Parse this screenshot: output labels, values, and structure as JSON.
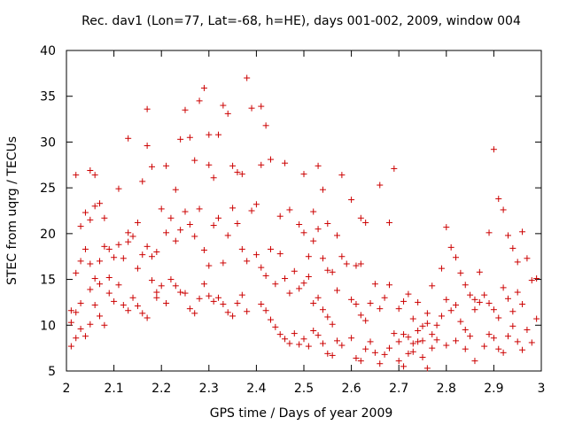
{
  "chart_data": {
    "type": "scatter",
    "title": "Rec. dav1 (Lon=77, Lat=-68, h=HE), days 001-002, 2009, window 004",
    "xlabel": "GPS time / Days of year 2009",
    "ylabel": "STEC from uqrg / TECUs",
    "xlim": [
      2,
      3
    ],
    "ylim": [
      5,
      40
    ],
    "xticks": [
      2,
      2.1,
      2.2,
      2.3,
      2.4,
      2.5,
      2.6,
      2.7,
      2.8,
      2.9,
      3
    ],
    "xtick_labels": [
      "2",
      "2.1",
      "2.2",
      "2.3",
      "2.4",
      "2.5",
      "2.6",
      "2.7",
      "2.8",
      "2.9",
      "3"
    ],
    "yticks": [
      5,
      10,
      15,
      20,
      25,
      30,
      35,
      40
    ],
    "ytick_labels": [
      "5",
      "10",
      "15",
      "20",
      "25",
      "30",
      "35",
      "40"
    ],
    "marker": "+",
    "grid": false,
    "legend": "none",
    "series": [
      {
        "name": "STEC",
        "color": "#cc0000",
        "points": [
          [
            2.02,
            26.4
          ],
          [
            2.05,
            26.9
          ],
          [
            2.06,
            26.4
          ],
          [
            2.03,
            20.8
          ],
          [
            2.04,
            22.3
          ],
          [
            2.05,
            21.5
          ],
          [
            2.06,
            23.0
          ],
          [
            2.07,
            23.3
          ],
          [
            2.08,
            21.7
          ],
          [
            2.02,
            15.7
          ],
          [
            2.03,
            17.0
          ],
          [
            2.04,
            18.3
          ],
          [
            2.05,
            16.7
          ],
          [
            2.06,
            15.1
          ],
          [
            2.07,
            17.0
          ],
          [
            2.08,
            18.6
          ],
          [
            2.09,
            18.3
          ],
          [
            2.1,
            17.4
          ],
          [
            2.11,
            24.9
          ],
          [
            2.13,
            30.4
          ],
          [
            2.13,
            20.1
          ],
          [
            2.14,
            19.7
          ],
          [
            2.15,
            21.2
          ],
          [
            2.16,
            25.7
          ],
          [
            2.17,
            29.6
          ],
          [
            2.17,
            33.6
          ],
          [
            2.18,
            27.3
          ],
          [
            2.11,
            18.8
          ],
          [
            2.12,
            17.3
          ],
          [
            2.13,
            19.1
          ],
          [
            2.15,
            16.2
          ],
          [
            2.16,
            17.7
          ],
          [
            2.17,
            18.6
          ],
          [
            2.18,
            17.5
          ],
          [
            2.19,
            18.0
          ],
          [
            2.19,
            13.0
          ],
          [
            2.2,
            22.7
          ],
          [
            2.21,
            27.4
          ],
          [
            2.22,
            21.7
          ],
          [
            2.23,
            24.8
          ],
          [
            2.24,
            30.3
          ],
          [
            2.25,
            33.5
          ],
          [
            2.26,
            30.5
          ],
          [
            2.27,
            28.0
          ],
          [
            2.28,
            34.5
          ],
          [
            2.29,
            35.9
          ],
          [
            2.3,
            30.8
          ],
          [
            2.3,
            27.5
          ],
          [
            2.31,
            26.1
          ],
          [
            2.32,
            30.8
          ],
          [
            2.33,
            34.0
          ],
          [
            2.34,
            33.1
          ],
          [
            2.35,
            27.4
          ],
          [
            2.36,
            26.7
          ],
          [
            2.37,
            26.5
          ],
          [
            2.38,
            37.0
          ],
          [
            2.39,
            33.7
          ],
          [
            2.41,
            33.9
          ],
          [
            2.42,
            31.8
          ],
          [
            2.41,
            27.5
          ],
          [
            2.43,
            28.1
          ],
          [
            2.46,
            27.7
          ],
          [
            2.39,
            22.5
          ],
          [
            2.21,
            20.1
          ],
          [
            2.23,
            19.2
          ],
          [
            2.24,
            20.4
          ],
          [
            2.25,
            22.4
          ],
          [
            2.26,
            21.0
          ],
          [
            2.27,
            19.7
          ],
          [
            2.28,
            22.7
          ],
          [
            2.29,
            18.2
          ],
          [
            2.3,
            16.5
          ],
          [
            2.31,
            20.9
          ],
          [
            2.32,
            21.7
          ],
          [
            2.33,
            16.8
          ],
          [
            2.34,
            19.8
          ],
          [
            2.35,
            22.8
          ],
          [
            2.36,
            21.1
          ],
          [
            2.37,
            18.3
          ],
          [
            2.38,
            17.0
          ],
          [
            2.4,
            23.2
          ],
          [
            2.01,
            11.6
          ],
          [
            2.02,
            11.4
          ],
          [
            2.03,
            9.6
          ],
          [
            2.04,
            8.8
          ],
          [
            2.05,
            10.1
          ],
          [
            2.06,
            12.2
          ],
          [
            2.07,
            11.0
          ],
          [
            2.08,
            10.0
          ],
          [
            2.09,
            13.5
          ],
          [
            2.01,
            10.3
          ],
          [
            2.02,
            8.6
          ],
          [
            2.01,
            7.7
          ],
          [
            2.03,
            12.4
          ],
          [
            2.05,
            13.9
          ],
          [
            2.07,
            14.5
          ],
          [
            2.09,
            15.2
          ],
          [
            2.1,
            12.6
          ],
          [
            2.11,
            14.4
          ],
          [
            2.12,
            12.2
          ],
          [
            2.13,
            11.6
          ],
          [
            2.14,
            13.0
          ],
          [
            2.15,
            12.1
          ],
          [
            2.16,
            11.3
          ],
          [
            2.17,
            10.8
          ],
          [
            2.18,
            14.9
          ],
          [
            2.19,
            13.6
          ],
          [
            2.2,
            14.3
          ],
          [
            2.21,
            12.4
          ],
          [
            2.22,
            15.0
          ],
          [
            2.23,
            14.3
          ],
          [
            2.24,
            13.6
          ],
          [
            2.25,
            13.5
          ],
          [
            2.26,
            11.8
          ],
          [
            2.27,
            11.3
          ],
          [
            2.28,
            12.9
          ],
          [
            2.29,
            14.5
          ],
          [
            2.3,
            13.2
          ],
          [
            2.31,
            12.6
          ],
          [
            2.32,
            13.0
          ],
          [
            2.33,
            12.3
          ],
          [
            2.34,
            11.4
          ],
          [
            2.35,
            11.0
          ],
          [
            2.36,
            12.4
          ],
          [
            2.37,
            13.3
          ],
          [
            2.38,
            11.5
          ],
          [
            2.41,
            12.3
          ],
          [
            2.42,
            11.6
          ],
          [
            2.43,
            10.6
          ],
          [
            2.44,
            9.8
          ],
          [
            2.45,
            9.0
          ],
          [
            2.46,
            8.5
          ],
          [
            2.47,
            8.0
          ],
          [
            2.48,
            9.1
          ],
          [
            2.49,
            7.9
          ],
          [
            2.5,
            8.5
          ],
          [
            2.51,
            7.7
          ],
          [
            2.52,
            9.4
          ],
          [
            2.53,
            8.9
          ],
          [
            2.54,
            8.0
          ],
          [
            2.55,
            6.9
          ],
          [
            2.56,
            6.7
          ],
          [
            2.57,
            8.3
          ],
          [
            2.58,
            7.8
          ],
          [
            2.4,
            17.7
          ],
          [
            2.41,
            16.3
          ],
          [
            2.42,
            15.4
          ],
          [
            2.43,
            18.3
          ],
          [
            2.44,
            14.5
          ],
          [
            2.45,
            17.8
          ],
          [
            2.46,
            15.1
          ],
          [
            2.47,
            13.5
          ],
          [
            2.48,
            15.9
          ],
          [
            2.49,
            14.0
          ],
          [
            2.5,
            14.6
          ],
          [
            2.51,
            15.3
          ],
          [
            2.52,
            12.4
          ],
          [
            2.53,
            13.0
          ],
          [
            2.54,
            11.7
          ],
          [
            2.55,
            10.9
          ],
          [
            2.56,
            10.1
          ],
          [
            2.57,
            13.8
          ],
          [
            2.45,
            21.9
          ],
          [
            2.47,
            22.6
          ],
          [
            2.49,
            21.0
          ],
          [
            2.5,
            26.5
          ],
          [
            2.52,
            22.4
          ],
          [
            2.53,
            27.4
          ],
          [
            2.54,
            24.8
          ],
          [
            2.55,
            21.1
          ],
          [
            2.57,
            19.8
          ],
          [
            2.5,
            20.1
          ],
          [
            2.51,
            17.5
          ],
          [
            2.52,
            19.2
          ],
          [
            2.53,
            20.5
          ],
          [
            2.54,
            17.3
          ],
          [
            2.55,
            16.0
          ],
          [
            2.56,
            15.8
          ],
          [
            2.58,
            17.5
          ],
          [
            2.59,
            16.7
          ],
          [
            2.58,
            26.4
          ],
          [
            2.6,
            23.7
          ],
          [
            2.62,
            21.7
          ],
          [
            2.63,
            21.2
          ],
          [
            2.66,
            25.3
          ],
          [
            2.68,
            21.2
          ],
          [
            2.69,
            27.1
          ],
          [
            2.61,
            16.5
          ],
          [
            2.62,
            16.7
          ],
          [
            2.6,
            12.8
          ],
          [
            2.61,
            12.3
          ],
          [
            2.62,
            11.1
          ],
          [
            2.63,
            10.5
          ],
          [
            2.64,
            12.4
          ],
          [
            2.65,
            14.5
          ],
          [
            2.66,
            11.8
          ],
          [
            2.67,
            13.0
          ],
          [
            2.68,
            14.4
          ],
          [
            2.6,
            8.6
          ],
          [
            2.61,
            6.4
          ],
          [
            2.62,
            6.1
          ],
          [
            2.63,
            7.4
          ],
          [
            2.64,
            8.2
          ],
          [
            2.65,
            7.0
          ],
          [
            2.66,
            5.8
          ],
          [
            2.67,
            6.8
          ],
          [
            2.68,
            7.5
          ],
          [
            2.69,
            9.1
          ],
          [
            2.7,
            11.8
          ],
          [
            2.71,
            12.6
          ],
          [
            2.72,
            13.4
          ],
          [
            2.73,
            10.7
          ],
          [
            2.74,
            12.5
          ],
          [
            2.75,
            9.9
          ],
          [
            2.76,
            11.3
          ],
          [
            2.77,
            14.3
          ],
          [
            2.7,
            6.1
          ],
          [
            2.71,
            5.5
          ],
          [
            2.72,
            6.9
          ],
          [
            2.73,
            7.1
          ],
          [
            2.74,
            8.2
          ],
          [
            2.75,
            6.5
          ],
          [
            2.76,
            5.3
          ],
          [
            2.77,
            7.5
          ],
          [
            2.78,
            8.4
          ],
          [
            2.7,
            8.2
          ],
          [
            2.71,
            9.0
          ],
          [
            2.72,
            8.7
          ],
          [
            2.73,
            8.0
          ],
          [
            2.74,
            9.4
          ],
          [
            2.75,
            8.3
          ],
          [
            2.76,
            10.2
          ],
          [
            2.77,
            9.0
          ],
          [
            2.78,
            10.0
          ],
          [
            2.79,
            11.0
          ],
          [
            2.8,
            12.8
          ],
          [
            2.81,
            11.6
          ],
          [
            2.82,
            12.2
          ],
          [
            2.83,
            10.4
          ],
          [
            2.84,
            9.5
          ],
          [
            2.85,
            8.8
          ],
          [
            2.86,
            11.7
          ],
          [
            2.87,
            12.5
          ],
          [
            2.79,
            16.2
          ],
          [
            2.8,
            20.7
          ],
          [
            2.81,
            18.5
          ],
          [
            2.82,
            17.4
          ],
          [
            2.83,
            15.7
          ],
          [
            2.84,
            14.4
          ],
          [
            2.85,
            13.3
          ],
          [
            2.86,
            12.8
          ],
          [
            2.87,
            15.8
          ],
          [
            2.8,
            7.8
          ],
          [
            2.82,
            8.3
          ],
          [
            2.84,
            7.4
          ],
          [
            2.86,
            6.1
          ],
          [
            2.88,
            7.7
          ],
          [
            2.89,
            9.0
          ],
          [
            2.9,
            8.6
          ],
          [
            2.91,
            7.4
          ],
          [
            2.92,
            7.0
          ],
          [
            2.88,
            13.3
          ],
          [
            2.89,
            12.4
          ],
          [
            2.9,
            11.7
          ],
          [
            2.91,
            10.8
          ],
          [
            2.92,
            14.1
          ],
          [
            2.93,
            12.9
          ],
          [
            2.94,
            11.5
          ],
          [
            2.95,
            13.6
          ],
          [
            2.96,
            12.3
          ],
          [
            2.89,
            20.1
          ],
          [
            2.9,
            29.2
          ],
          [
            2.91,
            23.8
          ],
          [
            2.92,
            22.6
          ],
          [
            2.93,
            19.8
          ],
          [
            2.94,
            18.4
          ],
          [
            2.95,
            16.9
          ],
          [
            2.96,
            20.2
          ],
          [
            2.97,
            17.3
          ],
          [
            2.93,
            8.8
          ],
          [
            2.94,
            9.9
          ],
          [
            2.95,
            8.2
          ],
          [
            2.96,
            7.3
          ],
          [
            2.97,
            9.5
          ],
          [
            2.98,
            8.1
          ],
          [
            2.99,
            10.7
          ],
          [
            2.98,
            14.9
          ],
          [
            2.99,
            15.1
          ]
        ]
      }
    ]
  }
}
